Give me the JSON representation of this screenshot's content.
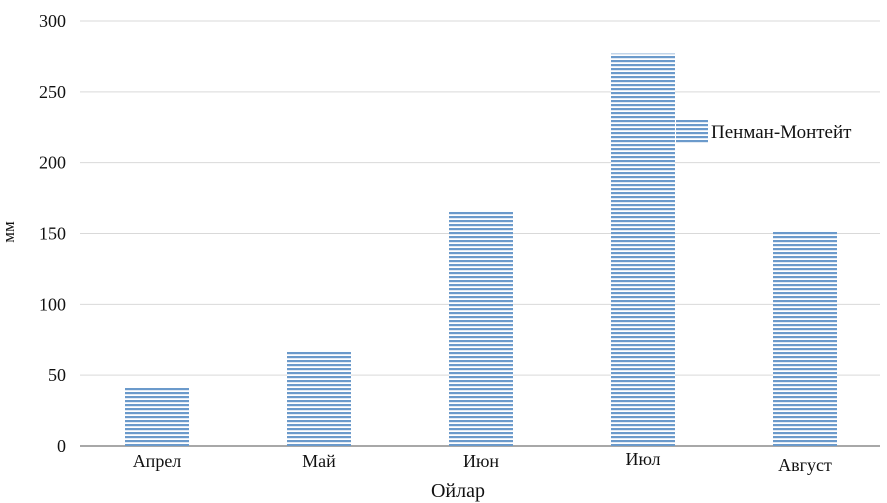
{
  "chart_data": {
    "type": "bar",
    "categories": [
      "Апрел",
      "Май",
      "Июн",
      "Июл",
      "Август"
    ],
    "series": [
      {
        "name": "Пенман-Монтейт",
        "values": [
          41,
          67,
          166,
          277,
          152
        ]
      }
    ],
    "xlabel": "Ойлар",
    "ylabel": "мм",
    "ylim": [
      0,
      300
    ],
    "yticks": [
      0,
      50,
      100,
      150,
      200,
      250,
      300
    ],
    "grid": true,
    "legend_position": "right",
    "colors": {
      "bar_fill": "#8fb2d6",
      "bar_stripe": "#4f84bb",
      "grid": "#d9d9d9",
      "axis": "#8c8c8c"
    }
  }
}
